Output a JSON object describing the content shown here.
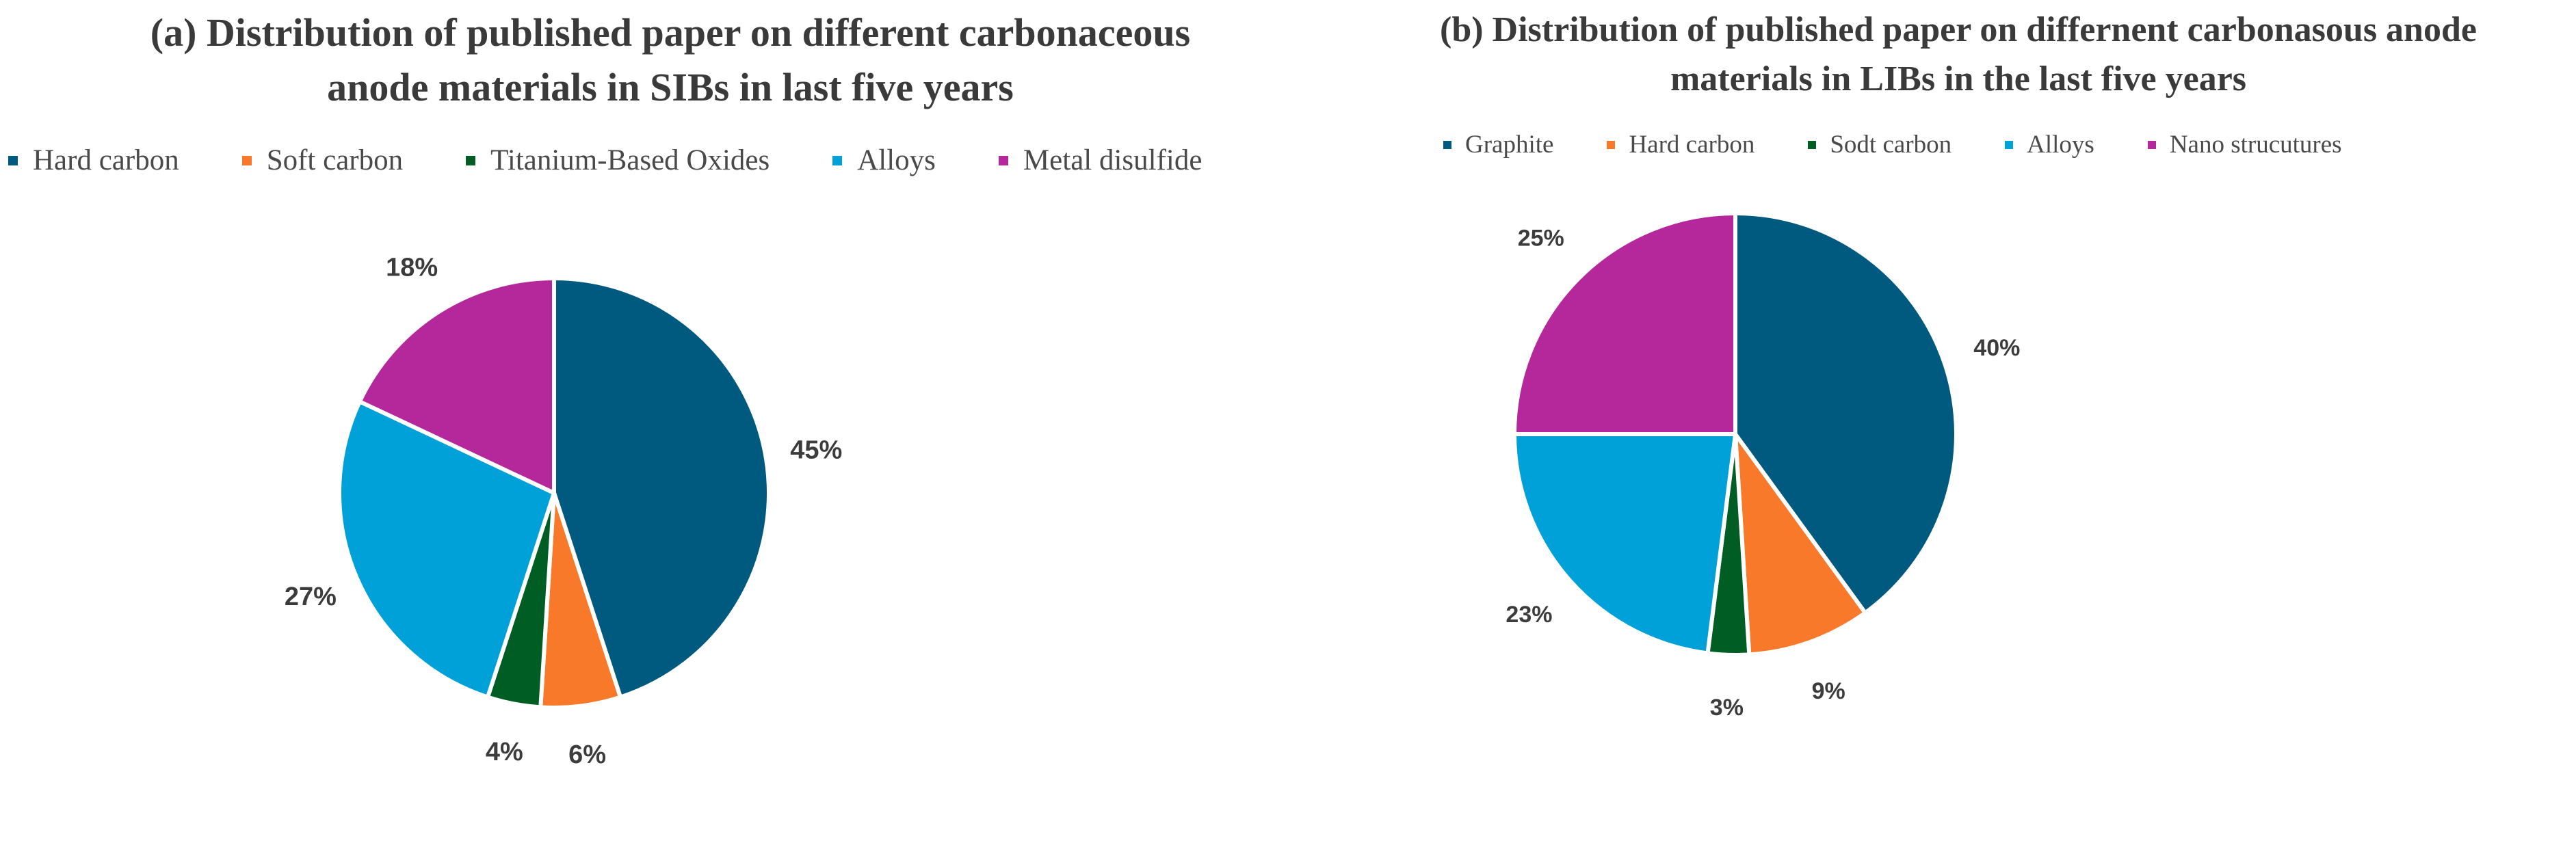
{
  "chart_data": [
    {
      "type": "pie",
      "title_lines": [
        "(a) Distribution  of published paper on different carbonaceous",
        "anode materials  in SIBs in last five years"
      ],
      "categories": [
        "Hard carbon",
        "Soft carbon",
        "Titanium-Based Oxides",
        "Alloys",
        "Metal disulfide"
      ],
      "values": [
        45,
        6,
        4,
        27,
        18
      ],
      "labels": [
        "45%",
        "6%",
        "4%",
        "27%",
        "18%"
      ],
      "colors": [
        "#005a80",
        "#f8792a",
        "#005e24",
        "#00a1d9",
        "#b4289b"
      ],
      "legend_position": "top",
      "start_angle_deg": 0,
      "direction": "clockwise"
    },
    {
      "type": "pie",
      "title_lines": [
        "(b) Distribution   of published paper on differnent  carbonasous anode",
        "materials in LIBs in the last five years"
      ],
      "categories": [
        "Graphite",
        "Hard carbon",
        "Sodt carbon",
        "Alloys",
        "Nano strucutures"
      ],
      "values": [
        40,
        9,
        3,
        23,
        25
      ],
      "labels": [
        "40%",
        "9%",
        "3%",
        "23%",
        "25%"
      ],
      "colors": [
        "#005a80",
        "#f8792a",
        "#005e24",
        "#00a1d9",
        "#b4289b"
      ],
      "legend_position": "top",
      "start_angle_deg": 0,
      "direction": "clockwise"
    }
  ]
}
